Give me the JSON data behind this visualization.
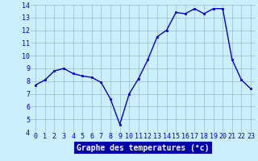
{
  "hours": [
    0,
    1,
    2,
    3,
    4,
    5,
    6,
    7,
    8,
    9,
    10,
    11,
    12,
    13,
    14,
    15,
    16,
    17,
    18,
    19,
    20,
    21,
    22,
    23
  ],
  "temps": [
    7.7,
    8.1,
    8.8,
    9.0,
    8.6,
    8.4,
    8.3,
    7.9,
    6.6,
    4.6,
    7.0,
    8.2,
    9.7,
    11.5,
    12.0,
    13.4,
    13.3,
    13.7,
    13.3,
    13.7,
    13.7,
    9.7,
    8.1,
    7.4
  ],
  "xlabel": "Graphe des temperatures (°c)",
  "ylim": [
    4,
    14
  ],
  "xlim_min": -0.5,
  "xlim_max": 23.5,
  "yticks": [
    4,
    5,
    6,
    7,
    8,
    9,
    10,
    11,
    12,
    13,
    14
  ],
  "xticks": [
    0,
    1,
    2,
    3,
    4,
    5,
    6,
    7,
    8,
    9,
    10,
    11,
    12,
    13,
    14,
    15,
    16,
    17,
    18,
    19,
    20,
    21,
    22,
    23
  ],
  "line_color": "#0000cc",
  "marker_color": "#0000cc",
  "bg_color": "#cceeff",
  "grid_color": "#99bbcc",
  "axis_label_color": "#ffffff",
  "tick_color": "#0000cc",
  "xlabel_bg": "#0000aa",
  "xlabel_fontsize": 7,
  "tick_fontsize": 6,
  "ylabel_fontsize": 6,
  "linewidth": 1.0,
  "markersize": 2.0
}
